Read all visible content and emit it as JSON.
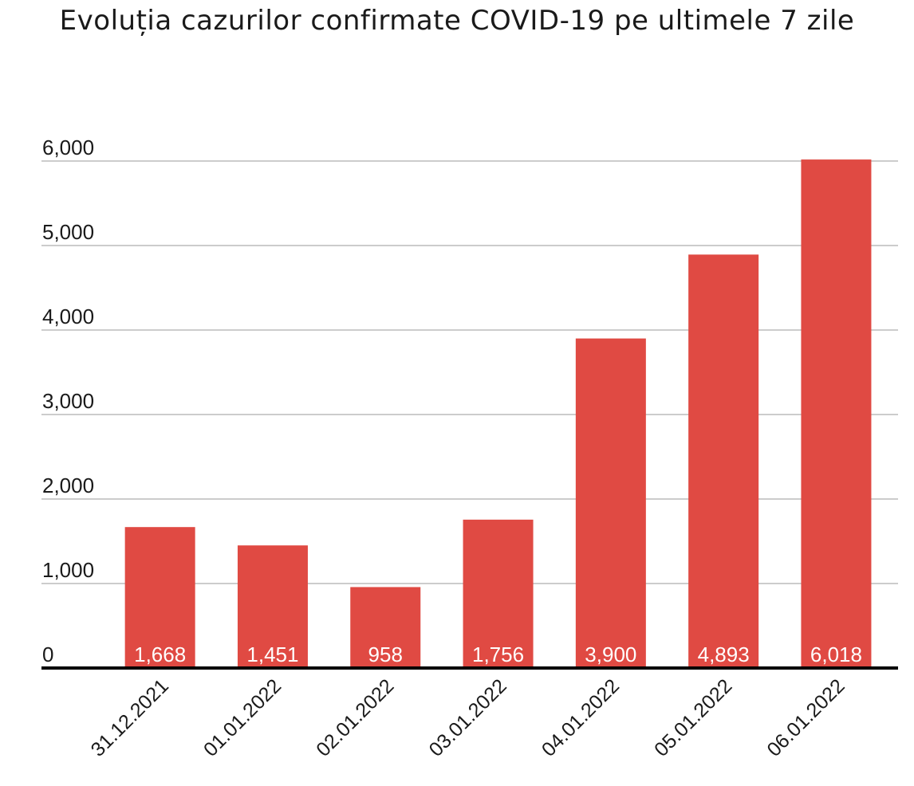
{
  "chart_data": {
    "type": "bar",
    "title": "Evoluția cazurilor confirmate COVID-19 pe ultimele 7 zile",
    "xlabel": "",
    "ylabel": "",
    "categories": [
      "31.12.2021",
      "01.01.2022",
      "02.01.2022",
      "03.01.2022",
      "04.01.2022",
      "05.01.2022",
      "06.01.2022"
    ],
    "values": [
      1668,
      1451,
      958,
      1756,
      3900,
      4893,
      6018
    ],
    "value_labels": [
      "1,668",
      "1,451",
      "958",
      "1,756",
      "3,900",
      "4,893",
      "6,018"
    ],
    "ylim": [
      0,
      6000
    ],
    "yticks": [
      0,
      1000,
      2000,
      3000,
      4000,
      5000,
      6000
    ],
    "ytick_labels": [
      "0",
      "1,000",
      "2,000",
      "3,000",
      "4,000",
      "5,000",
      "6,000"
    ],
    "grid": true,
    "legend": "none",
    "colors": {
      "bar": "#e04a43",
      "grid": "#cccccc",
      "axis": "#000000",
      "bar_label": "#ffffff"
    }
  }
}
